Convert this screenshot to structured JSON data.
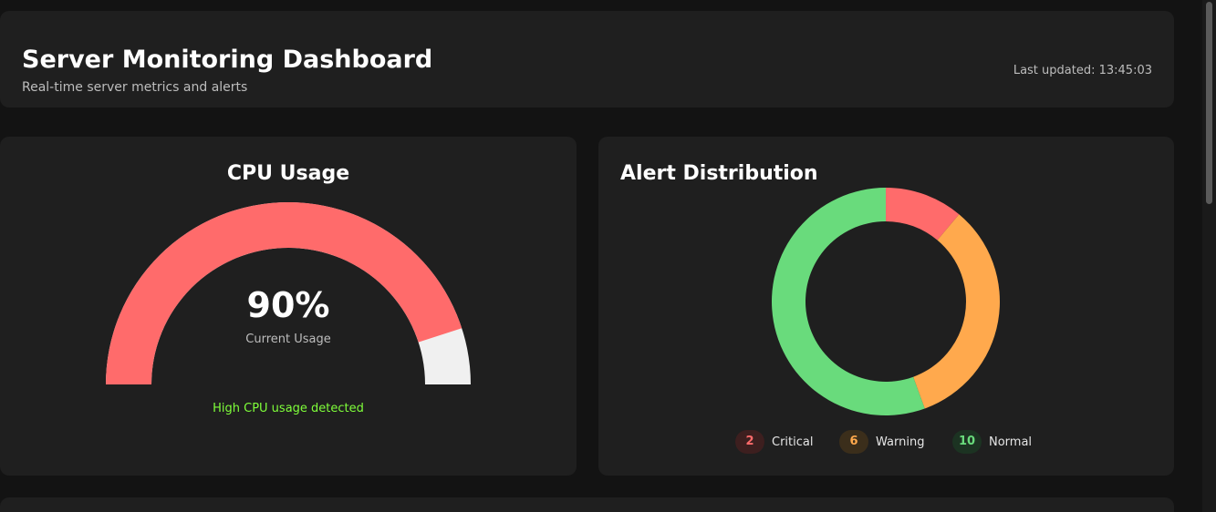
{
  "header": {
    "title": "Server Monitoring Dashboard",
    "subtitle": "Real-time server metrics and alerts",
    "updated_label": "Last updated: ",
    "updated_time": "13:45:03"
  },
  "cpu": {
    "title": "CPU Usage",
    "value_percent": 90,
    "value_text": "90%",
    "label": "Current Usage",
    "status": "High CPU usage detected",
    "colors": {
      "used": "#ff6b6b",
      "free": "#f0f0f0",
      "status": "#7fff3a"
    }
  },
  "alerts": {
    "title": "Alert Distribution",
    "items": [
      {
        "label": "Critical",
        "count": "2",
        "value": 2,
        "color": "#ff6b6b",
        "badge_bg": "#3d1f1f"
      },
      {
        "label": "Warning",
        "count": "6",
        "value": 6,
        "color": "#ffa94d",
        "badge_bg": "#3b2e1b"
      },
      {
        "label": "Normal",
        "count": "10",
        "value": 10,
        "color": "#69db7c",
        "badge_bg": "#1c3322"
      }
    ]
  }
}
